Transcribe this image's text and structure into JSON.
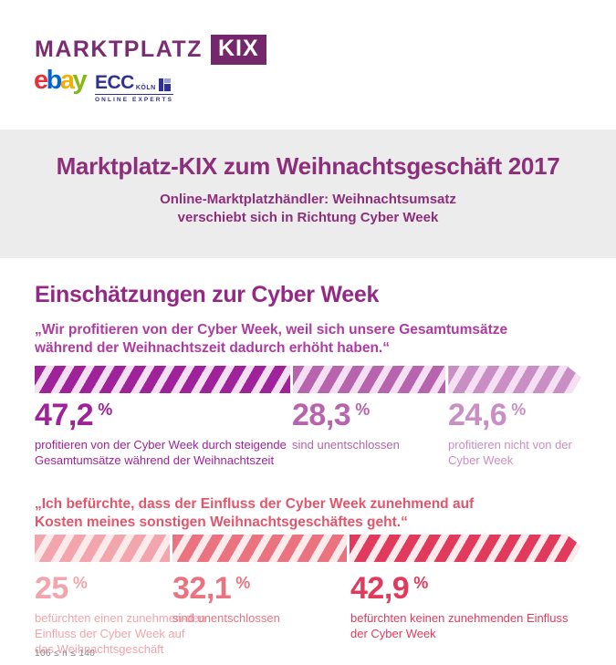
{
  "colors": {
    "brand_purple": "#7b2d72",
    "badge_purple": "#74276b",
    "band_bg": "#edecec",
    "title_purple": "#8c2e7c",
    "heading_magenta": "#942887",
    "ecc_blue": "#2e3192",
    "footnote_gray": "#8b7d8a"
  },
  "brand": {
    "wordmark": "MARKTPLATZ",
    "badge": "KIX",
    "ebay_letters": [
      {
        "ch": "e",
        "color": "#e53238"
      },
      {
        "ch": "b",
        "color": "#0064d2"
      },
      {
        "ch": "a",
        "color": "#f5af02"
      },
      {
        "ch": "y",
        "color": "#86b817"
      }
    ],
    "ecc_name": "ECC",
    "ecc_city": "KÖLN",
    "ecc_icon": "window-grid-icon",
    "ecc_tagline": "ONLINE EXPERTS"
  },
  "header": {
    "title": "Marktplatz-KIX zum Weihnachtsgeschäft 2017",
    "subtitle_line1": "Online-Marktplatzhändler: Weihnachtsumsatz",
    "subtitle_line2": "verschiebt sich in Richtung Cyber Week"
  },
  "section_heading": "Einschätzungen zur Cyber Week",
  "chart_data": [
    {
      "type": "bar",
      "layout": "horizontal-stacked",
      "unit": "%",
      "question": "„Wir profitieren von der Cyber Week, weil sich unsere Gesamtumsätze während der Weihnachtszeit dadurch erhöht haben.“",
      "question_color": "#ae3ba1",
      "track_color": "#f5e0f3",
      "stripe_direction": "diagonal-up-right",
      "segments": [
        {
          "value": "47,2",
          "value_num": 47.2,
          "label": "profitieren von der Cyber Week durch steigende Gesamtumsätze während der Weihnachtszeit",
          "color": "#a0229a"
        },
        {
          "value": "28,3",
          "value_num": 28.3,
          "label": "sind unentschlossen",
          "color": "#b763ae"
        },
        {
          "value": "24,6",
          "value_num": 24.6,
          "label": "profitieren nicht von der Cyber Week",
          "color": "#c98fc5"
        }
      ]
    },
    {
      "type": "bar",
      "layout": "horizontal-stacked",
      "unit": "%",
      "question": "„Ich befürchte, dass der Einfluss der Cyber Week zunehmend auf Kosten meines sonstigen Weihnachtsgeschäftes geht.“",
      "question_color": "#e4556b",
      "track_color": "#fdeaeb",
      "stripe_direction": "diagonal-up-right",
      "segments": [
        {
          "value": "25",
          "value_num": 25,
          "label": "befürchten einen zunehmen-den Einfluss der Cyber Week auf das Weihnachtsgeschäft",
          "color": "#f2a5ac"
        },
        {
          "value": "32,1",
          "value_num": 32.1,
          "label": "sind unentschlossen",
          "color": "#eb7380"
        },
        {
          "value": "42,9",
          "value_num": 42.9,
          "label": "befürchten keinen zunehmenden Einfluss der Cyber Week",
          "color": "#e23a5c"
        }
      ]
    }
  ],
  "footnote": "106 ≤ n ≤ 140"
}
